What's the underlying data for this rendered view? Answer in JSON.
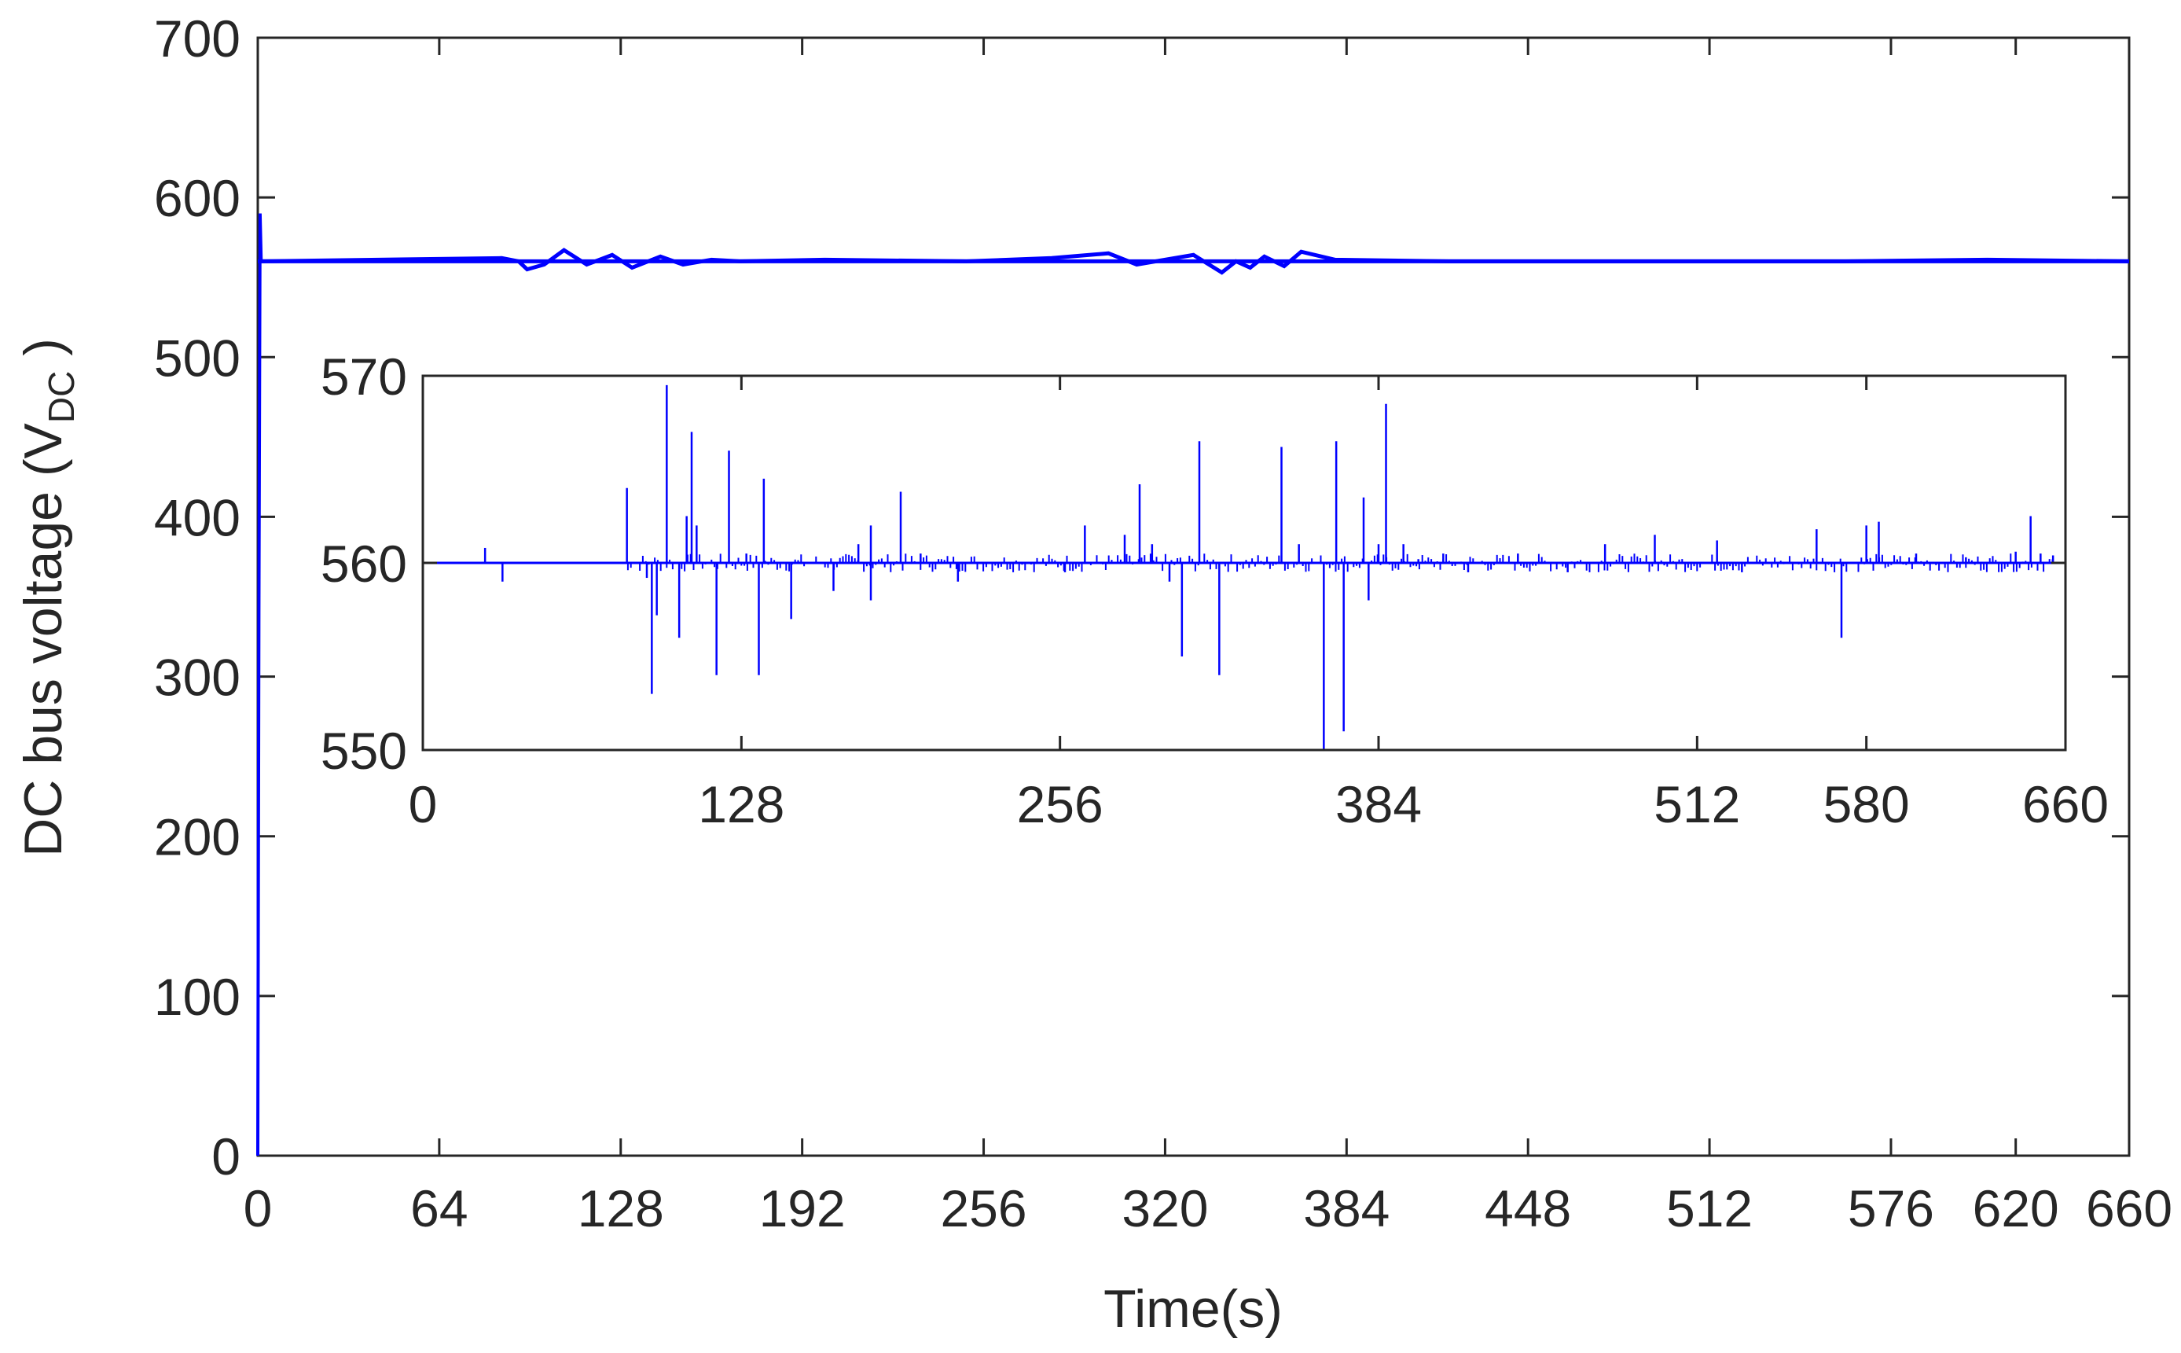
{
  "chart_data": [
    {
      "type": "line",
      "xlabel": "Time(s)",
      "ylabel": "DC bus voltage (V",
      "ylabel_subscript": "DC",
      "ylabel_close": " )",
      "xlim": [
        0,
        660
      ],
      "ylim": [
        0,
        700
      ],
      "x_ticks": [
        0,
        64,
        128,
        192,
        256,
        320,
        384,
        448,
        512,
        576,
        620,
        660
      ],
      "x_tick_labels": [
        "0",
        "64",
        "128",
        "192",
        "256",
        "320",
        "384",
        "448",
        "512",
        "576",
        "620",
        "660"
      ],
      "y_ticks": [
        0,
        100,
        200,
        300,
        400,
        500,
        600,
        700
      ],
      "y_tick_labels": [
        "0",
        "100",
        "200",
        "300",
        "400",
        "500",
        "600",
        "700"
      ],
      "grid": false,
      "line_color": "#0000ff",
      "series": [
        {
          "startup": [
            [
              0,
              0
            ],
            [
              0.4,
              340
            ],
            [
              0.8,
              590
            ],
            [
              1.2,
              560
            ]
          ],
          "baseline": 560,
          "x": [
            0,
            1.2,
            86,
            92,
            95,
            101,
            108,
            116,
            125,
            132,
            142,
            150,
            160,
            170,
            200,
            250,
            280,
            300,
            310,
            330,
            340,
            345,
            350,
            355,
            362,
            368,
            380,
            420,
            500,
            560,
            610,
            660
          ],
          "y": [
            560,
            560,
            562,
            560,
            555,
            558,
            567,
            558,
            564,
            556,
            563,
            558,
            561,
            560,
            561,
            560,
            562,
            565,
            558,
            564,
            553,
            560,
            556,
            563,
            557,
            566,
            561,
            560,
            560,
            560,
            561,
            560
          ]
        }
      ]
    },
    {
      "type": "line",
      "role": "inset",
      "xlim": [
        0,
        660
      ],
      "ylim": [
        550,
        570
      ],
      "x_ticks": [
        0,
        128,
        256,
        384,
        512,
        580,
        660
      ],
      "x_tick_labels": [
        "0",
        "128",
        "256",
        "384",
        "512",
        "580",
        "660"
      ],
      "y_ticks": [
        550,
        560,
        570
      ],
      "y_tick_labels": [
        "550",
        "560",
        "570"
      ],
      "grid": false,
      "line_color": "#0000ff",
      "baseline": 560,
      "spikes": [
        [
          25,
          560.8
        ],
        [
          32,
          559.0
        ],
        [
          82,
          564.0
        ],
        [
          90,
          559.2
        ],
        [
          92,
          553.0
        ],
        [
          94,
          557.2
        ],
        [
          98,
          569.5
        ],
        [
          103,
          556.0
        ],
        [
          106,
          562.5
        ],
        [
          108,
          567.0
        ],
        [
          110,
          562.0
        ],
        [
          118,
          554.0
        ],
        [
          123,
          566.0
        ],
        [
          130,
          560.5
        ],
        [
          135,
          554.0
        ],
        [
          137,
          564.5
        ],
        [
          148,
          557.0
        ],
        [
          165,
          558.5
        ],
        [
          175,
          561.0
        ],
        [
          180,
          562.0
        ],
        [
          180,
          558.0
        ],
        [
          192,
          563.8
        ],
        [
          200,
          560.5
        ],
        [
          215,
          559.0
        ],
        [
          240,
          560.0
        ],
        [
          258,
          559.5
        ],
        [
          266,
          562.0
        ],
        [
          282,
          561.5
        ],
        [
          288,
          564.2
        ],
        [
          290,
          560.0
        ],
        [
          293,
          561.0
        ],
        [
          300,
          559.0
        ],
        [
          305,
          555.0
        ],
        [
          312,
          566.5
        ],
        [
          320,
          554.0
        ],
        [
          345,
          566.2
        ],
        [
          352,
          561.0
        ],
        [
          362,
          550.0
        ],
        [
          367,
          566.5
        ],
        [
          370,
          551.0
        ],
        [
          378,
          563.5
        ],
        [
          380,
          558.0
        ],
        [
          384,
          561.0
        ],
        [
          387,
          568.5
        ],
        [
          394,
          561.0
        ],
        [
          400,
          560.2
        ],
        [
          410,
          560.5
        ],
        [
          420,
          559.5
        ],
        [
          440,
          560.5
        ],
        [
          460,
          559.5
        ],
        [
          475,
          561.0
        ],
        [
          495,
          561.5
        ],
        [
          520,
          561.2
        ],
        [
          530,
          559.5
        ],
        [
          560,
          561.8
        ],
        [
          570,
          556.0
        ],
        [
          580,
          562.0
        ],
        [
          585,
          562.2
        ],
        [
          600,
          560.5
        ],
        [
          620,
          560.3
        ],
        [
          640,
          560.6
        ],
        [
          646,
          562.5
        ],
        [
          650,
          560.5
        ],
        [
          655,
          560.4
        ],
        [
          660,
          560.0
        ]
      ]
    }
  ]
}
